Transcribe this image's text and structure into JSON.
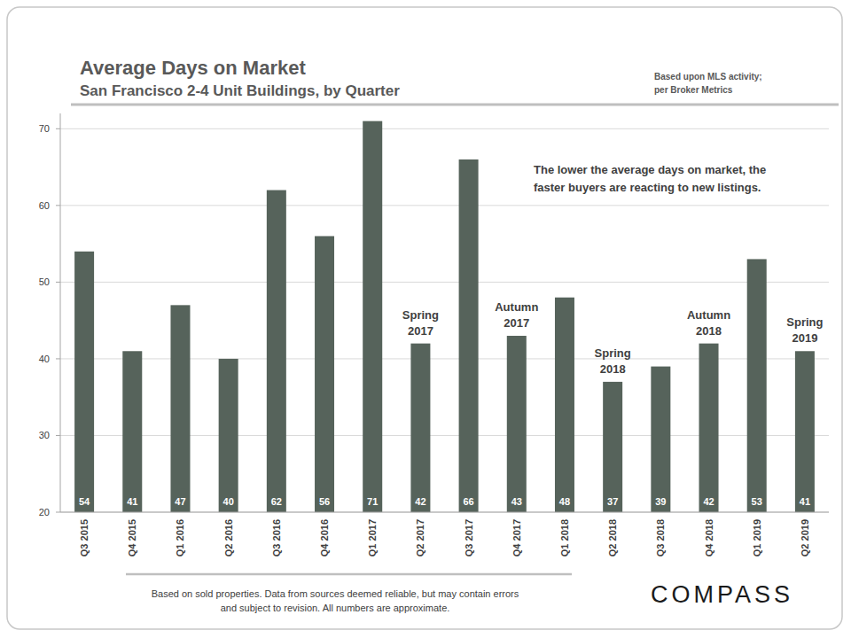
{
  "chart_data": {
    "type": "bar",
    "title": "Average Days on Market",
    "subtitle": "San Francisco 2-4 Unit Buildings, by Quarter",
    "source": "Based upon MLS activity; per Broker Metrics",
    "note": "The lower the average days on market, the faster buyers are reacting to new listings.",
    "footer": "Based on sold properties. Data from sources deemed reliable, but may contain errors and subject to revision. All numbers are approximate.",
    "logo": "COMPASS",
    "categories": [
      "Q3 2015",
      "Q4 2015",
      "Q1 2016",
      "Q2 2016",
      "Q3 2016",
      "Q4 2016",
      "Q1 2017",
      "Q2 2017",
      "Q3 2017",
      "Q4 2017",
      "Q1 2018",
      "Q2 2018",
      "Q3 2018",
      "Q4 2018",
      "Q1 2019",
      "Q2 2019"
    ],
    "values": [
      54,
      41,
      47,
      40,
      62,
      56,
      71,
      42,
      66,
      43,
      48,
      37,
      39,
      42,
      53,
      41
    ],
    "color": "#56635b",
    "ylim": [
      20,
      72
    ],
    "yticks": [
      20,
      30,
      40,
      50,
      60,
      70
    ],
    "grid": true,
    "data_labels": true,
    "annotations": [
      {
        "text": "Spring 2017",
        "category": "Q2 2017"
      },
      {
        "text": "Autumn 2017",
        "category": "Q4 2017"
      },
      {
        "text": "Spring 2018",
        "category": "Q2 2018"
      },
      {
        "text": "Autumn 2018",
        "category": "Q4 2018"
      },
      {
        "text": "Spring 2019",
        "category": "Q2 2019"
      }
    ]
  }
}
